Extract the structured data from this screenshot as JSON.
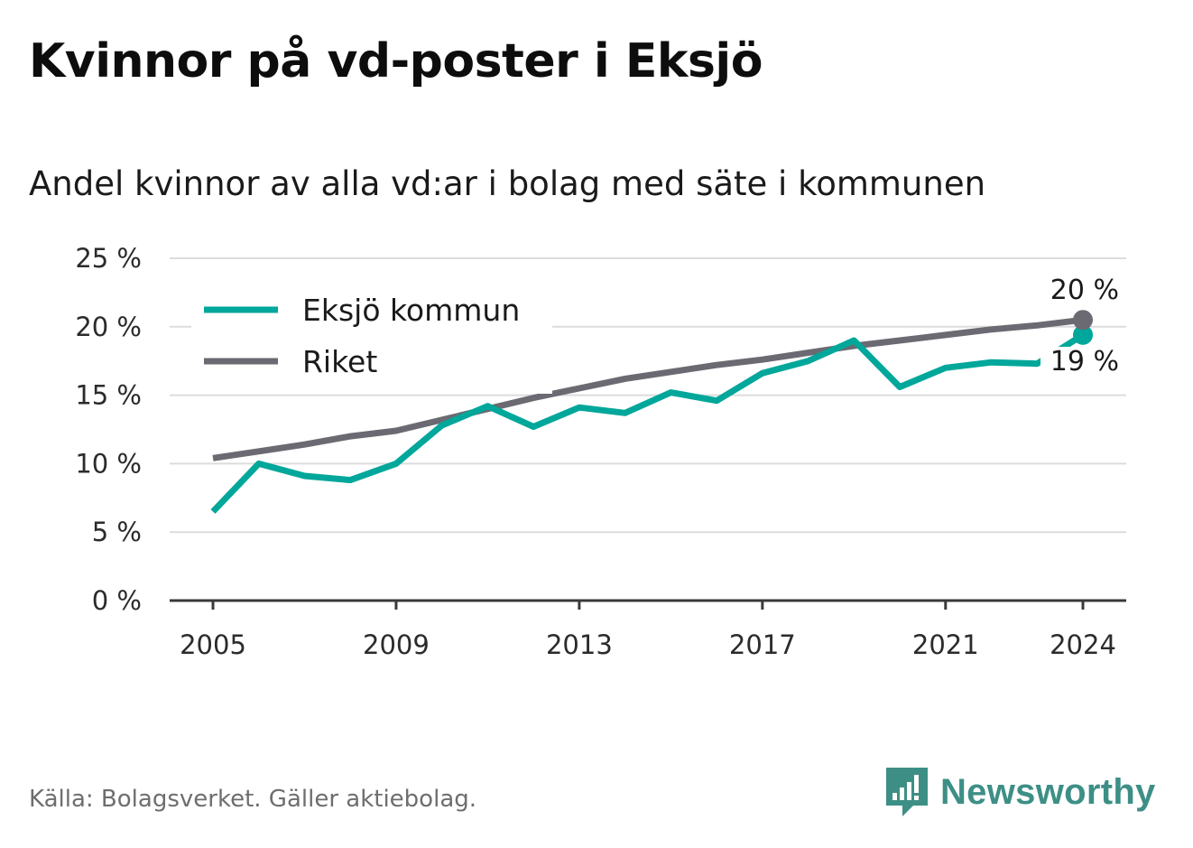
{
  "title": "Kvinnor på vd-poster i Eksjö",
  "subtitle": "Andel kvinnor av alla vd:ar i bolag med säte i kommunen",
  "source": "Källa: Bolagsverket. Gäller aktiebolag.",
  "brand": {
    "name": "Newsworthy",
    "icon": "newsworthy-logo-icon",
    "color": "#3d8f86"
  },
  "chart_data": {
    "type": "line",
    "ylim": [
      0,
      25
    ],
    "xlim": [
      2005,
      2024
    ],
    "y_ticks": [
      {
        "value": 0,
        "label": "0 %"
      },
      {
        "value": 5,
        "label": "5 %"
      },
      {
        "value": 10,
        "label": "10 %"
      },
      {
        "value": 15,
        "label": "15 %"
      },
      {
        "value": 20,
        "label": "20 %"
      },
      {
        "value": 25,
        "label": "25 %"
      }
    ],
    "x_ticks": [
      {
        "value": 2005,
        "label": "2005"
      },
      {
        "value": 2009,
        "label": "2009"
      },
      {
        "value": 2013,
        "label": "2013"
      },
      {
        "value": 2017,
        "label": "2017"
      },
      {
        "value": 2021,
        "label": "2021"
      },
      {
        "value": 2024,
        "label": "2024"
      }
    ],
    "grid": true,
    "legend_position": "top-left",
    "x": [
      2005,
      2006,
      2007,
      2008,
      2009,
      2010,
      2011,
      2012,
      2013,
      2014,
      2015,
      2016,
      2017,
      2018,
      2019,
      2020,
      2021,
      2022,
      2023,
      2024
    ],
    "series": [
      {
        "name": "Eksjö kommun",
        "color": "#00a79a",
        "values": [
          6.5,
          10.0,
          9.1,
          8.8,
          10.0,
          12.8,
          14.2,
          12.7,
          14.1,
          13.7,
          15.2,
          14.6,
          16.6,
          17.5,
          19.0,
          15.6,
          17.0,
          17.4,
          17.3,
          19.4
        ],
        "end_label": "19 %"
      },
      {
        "name": "Riket",
        "color": "#6b6a72",
        "values": [
          10.4,
          10.9,
          11.4,
          12.0,
          12.4,
          13.2,
          14.0,
          14.8,
          15.5,
          16.2,
          16.7,
          17.2,
          17.6,
          18.1,
          18.6,
          19.0,
          19.4,
          19.8,
          20.1,
          20.5
        ],
        "end_label": "20 %"
      }
    ]
  }
}
